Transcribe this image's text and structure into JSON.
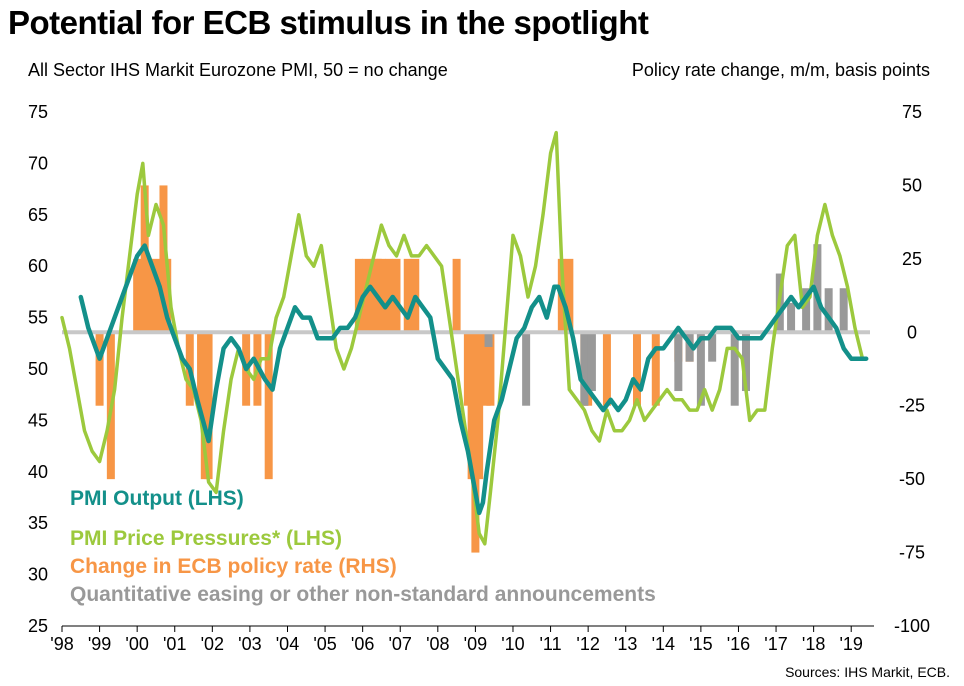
{
  "header": {
    "title": "Potential for ECB stimulus in the spotlight",
    "left_subtitle": "All Sector IHS Markit Eurozone PMI, 50 = no change",
    "right_subtitle": "Policy rate change, m/m, basis points",
    "source": "Sources: IHS Markit, ECB."
  },
  "chart_data": {
    "type": "line",
    "x_tick_labels": [
      "'98",
      "'99",
      "'00",
      "'01",
      "'02",
      "'03",
      "'04",
      "'05",
      "'06",
      "'07",
      "'08",
      "'09",
      "'10",
      "'11",
      "'12",
      "'13",
      "'14",
      "'15",
      "'16",
      "'17",
      "'18",
      "'19"
    ],
    "x_tick_years": [
      1998,
      1999,
      2000,
      2001,
      2002,
      2003,
      2004,
      2005,
      2006,
      2007,
      2008,
      2009,
      2010,
      2011,
      2012,
      2013,
      2014,
      2015,
      2016,
      2017,
      2018,
      2019
    ],
    "xlim": [
      1998.0,
      2019.5
    ],
    "left_axis": {
      "ylim": [
        25,
        75
      ],
      "ticks": [
        "75",
        "70",
        "65",
        "60",
        "55",
        "50",
        "45",
        "40",
        "35",
        "30",
        "25"
      ],
      "tick_values": [
        75,
        70,
        65,
        60,
        55,
        50,
        45,
        40,
        35,
        30,
        25
      ]
    },
    "right_axis": {
      "ylim": [
        -100,
        75
      ],
      "ticks": [
        "75",
        "50",
        "25",
        "0",
        "-25",
        "-50",
        "-75",
        "-100"
      ],
      "tick_values": [
        75,
        50,
        25,
        0,
        -25,
        -50,
        -75,
        -100
      ]
    },
    "legend": [
      {
        "name": "PMI  Output (LHS)",
        "color": "#13908a"
      },
      {
        "name": "PMI Price Pressures* (LHS)",
        "color": "#9cc93d"
      },
      {
        "name": "Change in ECB policy rate (RHS)",
        "color": "#f79646"
      },
      {
        "name": "Quantitative easing or other non-standard announcements",
        "color": "#999999"
      }
    ],
    "legend_placement": "bottom-left",
    "series": [
      {
        "name": "PMI  Output (LHS)",
        "axis": "left",
        "color": "#13908a",
        "x": [
          1998.5,
          1998.7,
          1998.9,
          1999.0,
          1999.2,
          1999.4,
          1999.6,
          1999.8,
          2000.0,
          2000.2,
          2000.4,
          2000.6,
          2000.8,
          2001.0,
          2001.2,
          2001.4,
          2001.6,
          2001.75,
          2001.9,
          2002.1,
          2002.3,
          2002.5,
          2002.7,
          2002.9,
          2003.1,
          2003.25,
          2003.4,
          2003.6,
          2003.8,
          2004.0,
          2004.2,
          2004.4,
          2004.6,
          2004.8,
          2005.0,
          2005.2,
          2005.4,
          2005.6,
          2005.8,
          2006.0,
          2006.2,
          2006.4,
          2006.6,
          2006.8,
          2007.0,
          2007.2,
          2007.4,
          2007.6,
          2007.8,
          2008.0,
          2008.2,
          2008.4,
          2008.6,
          2008.8,
          2009.0,
          2009.1,
          2009.2,
          2009.3,
          2009.5,
          2009.7,
          2009.9,
          2010.1,
          2010.3,
          2010.5,
          2010.7,
          2010.9,
          2011.1,
          2011.2,
          2011.4,
          2011.6,
          2011.8,
          2012.0,
          2012.2,
          2012.4,
          2012.6,
          2012.8,
          2013.0,
          2013.2,
          2013.4,
          2013.6,
          2013.8,
          2014.0,
          2014.2,
          2014.4,
          2014.6,
          2014.8,
          2015.0,
          2015.2,
          2015.4,
          2015.6,
          2015.8,
          2016.0,
          2016.2,
          2016.4,
          2016.6,
          2016.8,
          2017.0,
          2017.2,
          2017.4,
          2017.6,
          2017.8,
          2018.0,
          2018.2,
          2018.4,
          2018.6,
          2018.8,
          2019.0,
          2019.2,
          2019.4
        ],
        "values": [
          57,
          54,
          52,
          51,
          53,
          55,
          57,
          59,
          61,
          62,
          60,
          58,
          55,
          53,
          51,
          50,
          47,
          45,
          43,
          48,
          52,
          53,
          52,
          50,
          51,
          50,
          49,
          48,
          52,
          54,
          56,
          55,
          55,
          53,
          53,
          53,
          54,
          54,
          55,
          57,
          58,
          57,
          56,
          57,
          56,
          55,
          57,
          56,
          55,
          51,
          50,
          49,
          45,
          42,
          38,
          36,
          37,
          40,
          45,
          47,
          50,
          53,
          54,
          56,
          57,
          55,
          58,
          58,
          56,
          53,
          49,
          48,
          47,
          46,
          47,
          46,
          47,
          49,
          48,
          51,
          52,
          52,
          53,
          54,
          53,
          52,
          53,
          53,
          54,
          54,
          54,
          53,
          53,
          53,
          53,
          54,
          55,
          56,
          57,
          56,
          57,
          58,
          56,
          55,
          54,
          52,
          51,
          51,
          51
        ]
      },
      {
        "name": "PMI Price Pressures* (LHS)",
        "axis": "left",
        "color": "#9cc93d",
        "x": [
          1998.0,
          1998.2,
          1998.4,
          1998.6,
          1998.8,
          1999.0,
          1999.2,
          1999.4,
          1999.6,
          1999.8,
          2000.0,
          2000.15,
          2000.3,
          2000.5,
          2000.7,
          2000.9,
          2001.1,
          2001.3,
          2001.5,
          2001.7,
          2001.9,
          2002.1,
          2002.3,
          2002.5,
          2002.7,
          2002.9,
          2003.1,
          2003.3,
          2003.5,
          2003.7,
          2003.9,
          2004.1,
          2004.3,
          2004.5,
          2004.7,
          2004.9,
          2005.1,
          2005.3,
          2005.5,
          2005.7,
          2005.9,
          2006.1,
          2006.3,
          2006.5,
          2006.7,
          2006.9,
          2007.1,
          2007.3,
          2007.5,
          2007.7,
          2007.9,
          2008.1,
          2008.3,
          2008.5,
          2008.7,
          2008.9,
          2009.1,
          2009.25,
          2009.4,
          2009.6,
          2009.8,
          2010.0,
          2010.2,
          2010.4,
          2010.6,
          2010.8,
          2011.0,
          2011.15,
          2011.3,
          2011.5,
          2011.7,
          2011.9,
          2012.1,
          2012.3,
          2012.5,
          2012.7,
          2012.9,
          2013.1,
          2013.3,
          2013.5,
          2013.7,
          2013.9,
          2014.1,
          2014.3,
          2014.5,
          2014.7,
          2014.9,
          2015.1,
          2015.3,
          2015.5,
          2015.7,
          2015.9,
          2016.1,
          2016.3,
          2016.5,
          2016.7,
          2016.9,
          2017.1,
          2017.3,
          2017.5,
          2017.7,
          2017.9,
          2018.1,
          2018.3,
          2018.5,
          2018.7,
          2018.9,
          2019.1,
          2019.3
        ],
        "values": [
          55,
          52,
          48,
          44,
          42,
          41,
          44,
          48,
          55,
          61,
          67,
          70,
          63,
          66,
          64,
          56,
          52,
          49,
          48,
          45,
          39,
          38,
          44,
          49,
          52,
          50,
          49,
          51,
          51,
          55,
          57,
          61,
          65,
          61,
          60,
          62,
          57,
          52,
          50,
          52,
          55,
          58,
          61,
          64,
          62,
          61,
          63,
          61,
          61,
          62,
          61,
          60,
          55,
          50,
          45,
          40,
          34,
          33,
          38,
          45,
          54,
          63,
          61,
          57,
          60,
          65,
          71,
          73,
          60,
          48,
          47,
          46,
          44,
          43,
          46,
          44,
          44,
          45,
          47,
          45,
          46,
          47,
          48,
          47,
          47,
          46,
          46,
          48,
          46,
          48,
          52,
          52,
          51,
          45,
          46,
          46,
          52,
          57,
          62,
          63,
          56,
          57,
          63,
          66,
          63,
          61,
          58,
          54,
          51
        ]
      }
    ],
    "bars": [
      {
        "name": "Change in ECB policy rate (RHS)",
        "axis": "right",
        "color": "#f79646",
        "x": [
          1999.0,
          1999.3,
          2000.0,
          2000.2,
          2000.3,
          2000.5,
          2000.7,
          2000.8,
          2001.4,
          2001.7,
          2001.8,
          2001.9,
          2002.9,
          2003.2,
          2003.5,
          2005.9,
          2006.1,
          2006.3,
          2006.4,
          2006.5,
          2006.7,
          2006.9,
          2007.2,
          2007.4,
          2008.5,
          2008.8,
          2008.9,
          2009.0,
          2009.1,
          2009.3,
          2009.4,
          2011.3,
          2011.5,
          2011.9,
          2012.0,
          2012.5,
          2013.3,
          2013.8,
          2014.4,
          2014.7
        ],
        "values": [
          -25,
          -50,
          25,
          50,
          25,
          25,
          50,
          25,
          -25,
          -25,
          -50,
          -50,
          -25,
          -25,
          -50,
          25,
          25,
          25,
          25,
          25,
          25,
          25,
          25,
          25,
          25,
          -25,
          -50,
          -75,
          -50,
          -25,
          -25,
          25,
          25,
          -25,
          -25,
          -25,
          -25,
          -25,
          -10,
          -10
        ]
      },
      {
        "name": "Quantitative easing or other non-standard announcements",
        "axis": "right",
        "color": "#999999",
        "x": [
          2009.35,
          2010.35,
          2011.9,
          2012.1,
          2014.4,
          2014.7,
          2015.0,
          2015.3,
          2015.9,
          2016.2,
          2017.1,
          2017.4,
          2017.8,
          2018.1,
          2018.4,
          2018.8
        ],
        "values": [
          -5,
          -25,
          -25,
          -20,
          -20,
          -10,
          -25,
          -10,
          -25,
          -20,
          20,
          10,
          15,
          30,
          15,
          15
        ]
      }
    ]
  }
}
